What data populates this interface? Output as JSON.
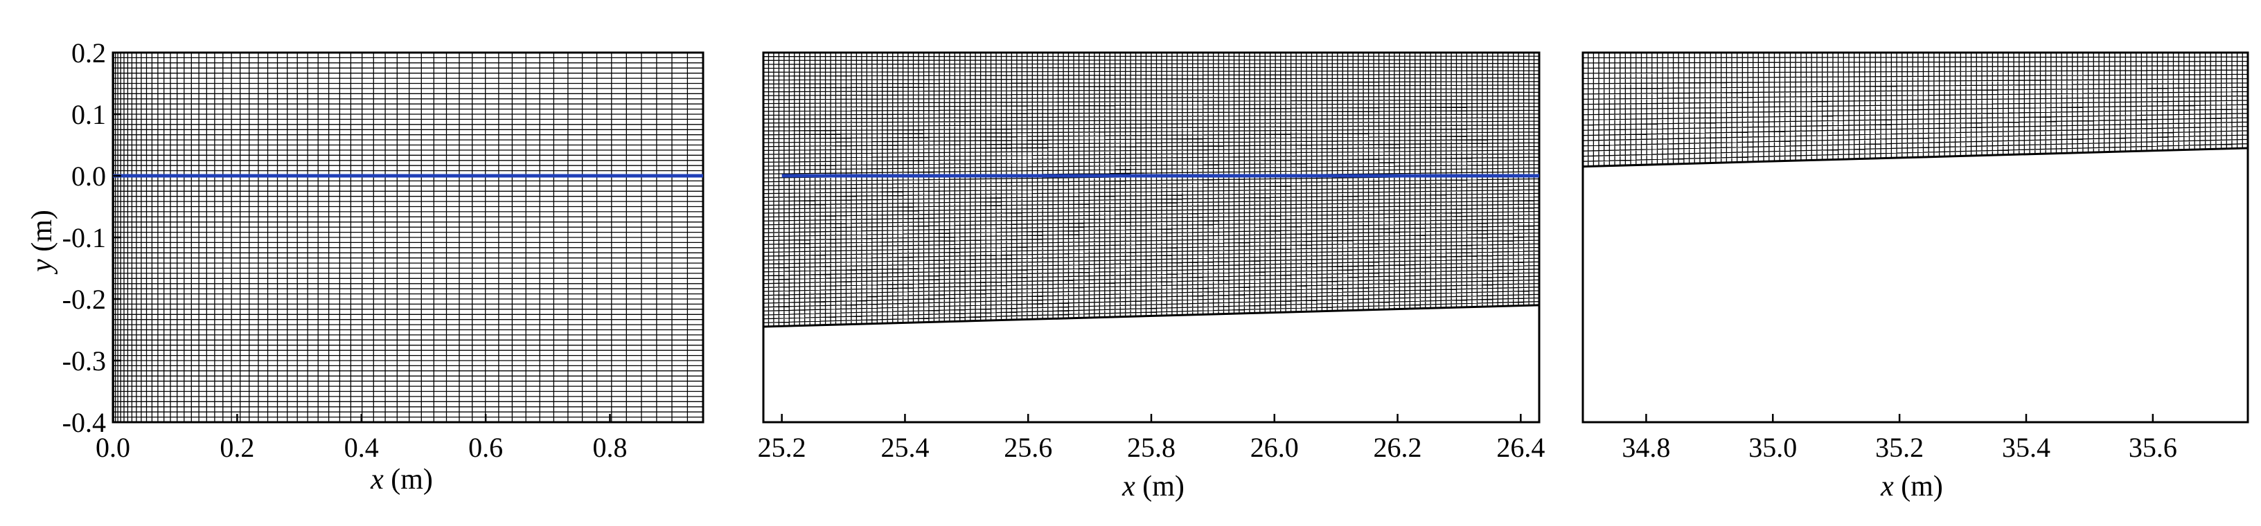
{
  "chart_data": [
    {
      "type": "line",
      "xlabel_var": "x",
      "xlabel_unit": " (m)",
      "ylabel_var": "y",
      "ylabel_unit": " (m)",
      "xlim": [
        0.0,
        0.95
      ],
      "ylim": [
        -0.4,
        0.2
      ],
      "xticks": [
        "0.0",
        "0.2",
        "0.4",
        "0.6",
        "0.8"
      ],
      "yticks": [
        "0.2",
        "0.1",
        "0.0",
        "-0.1",
        "-0.2",
        "-0.3",
        "-0.4"
      ],
      "mesh_bottom": [
        -0.4,
        -0.4
      ],
      "series": [
        {
          "x": [
            0.0,
            0.95
          ],
          "y": [
            0.0,
            0.0
          ],
          "color": "#1f3fb8"
        }
      ]
    },
    {
      "type": "line",
      "xlabel_var": "x",
      "xlabel_unit": " (m)",
      "xlim": [
        25.17,
        26.43
      ],
      "xticks": [
        "25.2",
        "25.4",
        "25.6",
        "25.8",
        "26.0",
        "26.2",
        "26.4"
      ],
      "mesh_bottom": [
        -0.245,
        -0.21
      ],
      "series": [
        {
          "x": [
            25.2,
            26.43
          ],
          "y": [
            0.0,
            0.0
          ],
          "color": "#1f3fb8"
        }
      ]
    },
    {
      "type": "line",
      "xlabel_var": "x",
      "xlabel_unit": " (m)",
      "xlim": [
        34.7,
        35.75
      ],
      "xticks": [
        "34.8",
        "35.0",
        "35.2",
        "35.4",
        "35.6"
      ],
      "mesh_bottom": [
        0.015,
        0.045
      ],
      "series": []
    }
  ]
}
